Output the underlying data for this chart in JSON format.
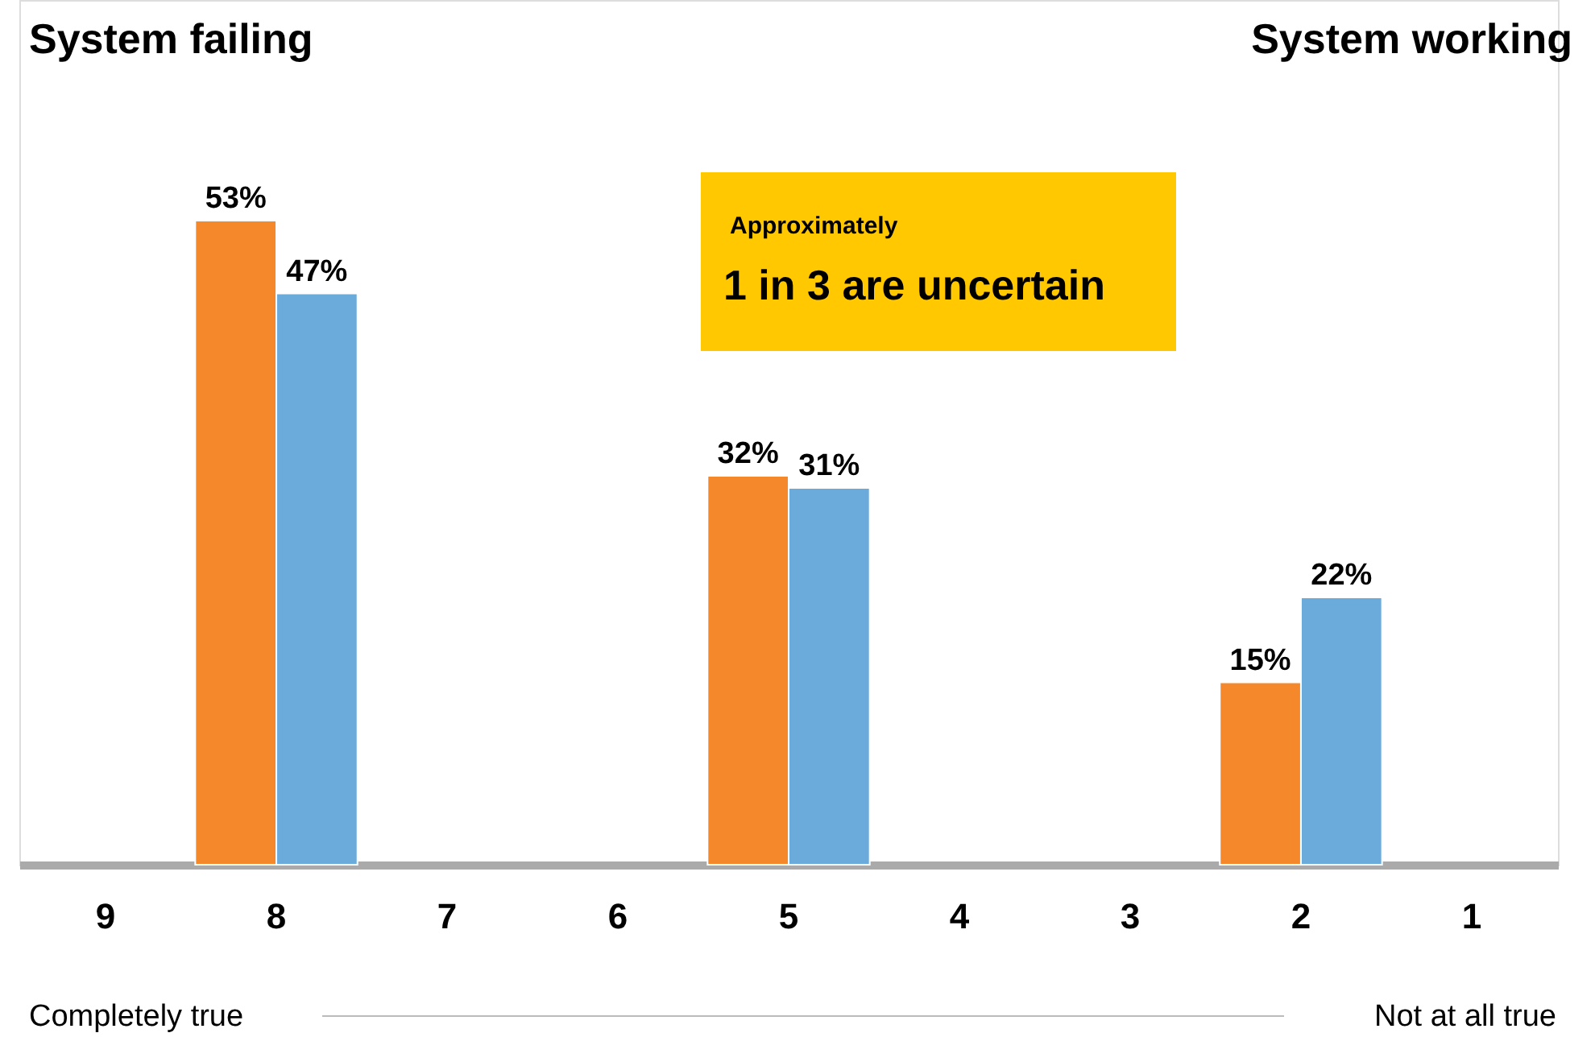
{
  "chart_data": {
    "type": "bar",
    "categories": [
      "9",
      "8",
      "7",
      "6",
      "5",
      "4",
      "3",
      "2",
      "1"
    ],
    "series": [
      {
        "color": "#f5882a",
        "values": [
          null,
          53,
          null,
          null,
          32,
          null,
          null,
          15,
          null
        ],
        "value_labels": [
          null,
          "53%",
          null,
          null,
          "32%",
          null,
          null,
          "15%",
          null
        ]
      },
      {
        "color": "#6aabdc",
        "values": [
          null,
          47,
          null,
          null,
          31,
          null,
          null,
          22,
          null
        ],
        "value_labels": [
          null,
          "47%",
          null,
          null,
          "31%",
          null,
          null,
          "22%",
          null
        ]
      }
    ],
    "tick_labels": "x",
    "grid": false,
    "annotations": [
      "System failing",
      "System working",
      "Approximately",
      "1 in 3 are uncertain",
      "Completely true",
      "Not at all true"
    ]
  }
}
